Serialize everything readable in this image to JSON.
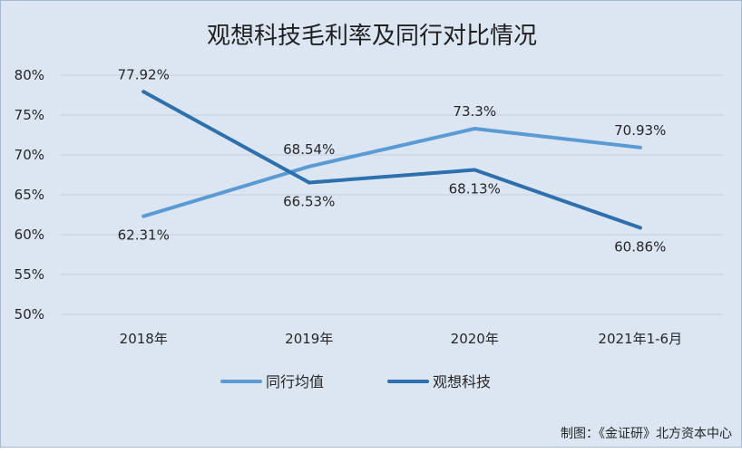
{
  "chart_data": {
    "type": "line",
    "title": "观想科技毛利率及同行对比情况",
    "categories": [
      "2018年",
      "2019年",
      "2020年",
      "2021年1-6月"
    ],
    "y_ticks": [
      "80%",
      "75%",
      "70%",
      "65%",
      "60%",
      "55%",
      "50%"
    ],
    "ylim": [
      50,
      80
    ],
    "grid": true,
    "legend_position": "bottom",
    "series": [
      {
        "name": "同行均值",
        "color": "#5b9bd5",
        "values": [
          62.31,
          68.54,
          73.3,
          70.93
        ],
        "labels": [
          "62.31%",
          "68.54%",
          "73.3%",
          "70.93%"
        ]
      },
      {
        "name": "观想科技",
        "color": "#2e6fad",
        "values": [
          77.92,
          66.53,
          68.13,
          60.86
        ],
        "labels": [
          "77.92%",
          "66.53%",
          "68.13%",
          "60.86%"
        ]
      }
    ],
    "credit": "制图：《金证研》北方资本中心"
  }
}
